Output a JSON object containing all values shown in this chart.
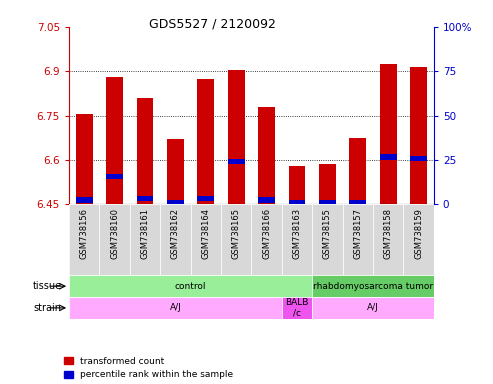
{
  "title": "GDS5527 / 2120092",
  "samples": [
    "GSM738156",
    "GSM738160",
    "GSM738161",
    "GSM738162",
    "GSM738164",
    "GSM738165",
    "GSM738166",
    "GSM738163",
    "GSM738155",
    "GSM738157",
    "GSM738158",
    "GSM738159"
  ],
  "bar_tops": [
    6.755,
    6.88,
    6.81,
    6.67,
    6.875,
    6.905,
    6.78,
    6.58,
    6.585,
    6.675,
    6.925,
    6.915
  ],
  "bar_base": 6.45,
  "blue_values": [
    6.465,
    6.545,
    6.47,
    6.455,
    6.47,
    6.595,
    6.465,
    6.455,
    6.455,
    6.455,
    6.61,
    6.605
  ],
  "ylim_left": [
    6.45,
    7.05
  ],
  "yticks_left": [
    6.45,
    6.6,
    6.75,
    6.9,
    7.05
  ],
  "ylim_right": [
    0,
    100
  ],
  "yticks_right": [
    0,
    25,
    50,
    75,
    100
  ],
  "bar_color": "#cc0000",
  "blue_color": "#0000cc",
  "left_tick_color": "#cc0000",
  "right_tick_color": "#0000cc",
  "tissue_groups": [
    {
      "label": "control",
      "start": 0,
      "end": 8,
      "color": "#99ee99"
    },
    {
      "label": "rhabdomyosarcoma tumor",
      "start": 8,
      "end": 12,
      "color": "#66cc66"
    }
  ],
  "strain_groups": [
    {
      "label": "A/J",
      "start": 0,
      "end": 7,
      "color": "#ffaaff"
    },
    {
      "label": "BALB\n/c",
      "start": 7,
      "end": 8,
      "color": "#ee55ee"
    },
    {
      "label": "A/J",
      "start": 8,
      "end": 12,
      "color": "#ffaaff"
    }
  ],
  "bg_color": "#ffffff",
  "bar_width": 0.55,
  "legend_red": "transformed count",
  "legend_blue": "percentile rank within the sample"
}
